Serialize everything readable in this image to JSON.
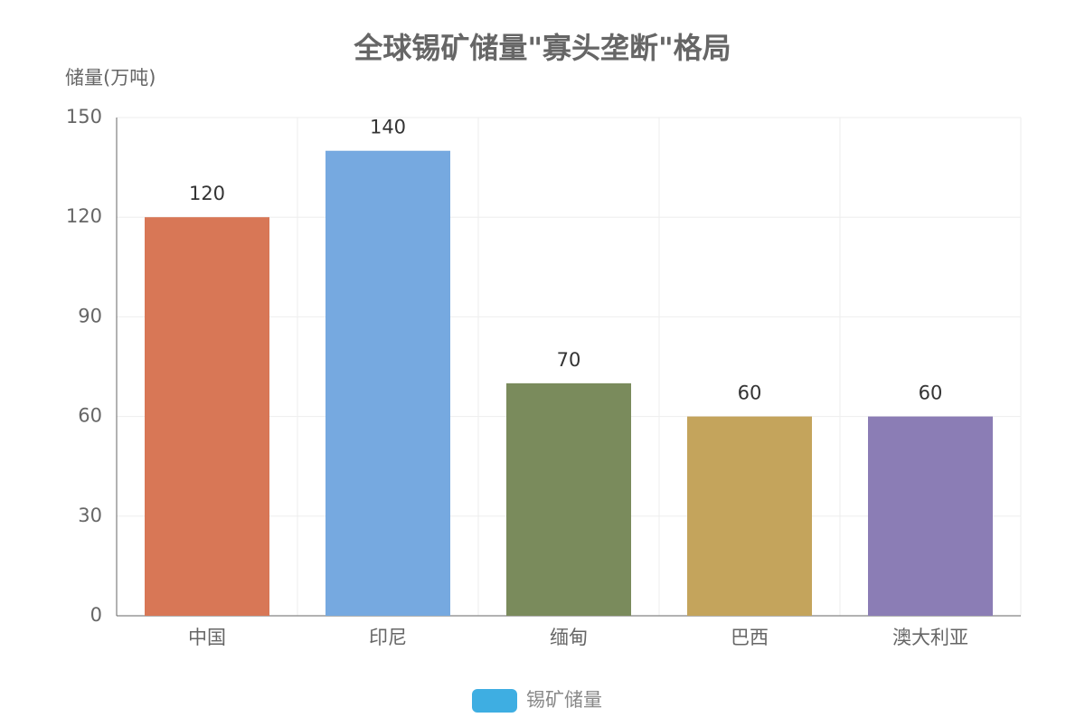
{
  "chart_data": {
    "type": "bar",
    "title": "全球锡矿储量\"寡头垄断\"格局",
    "y_axis_label": "储量(万吨)",
    "categories": [
      "中国",
      "印尼",
      "缅甸",
      "巴西",
      "澳大利亚"
    ],
    "series": [
      {
        "name": "锡矿储量",
        "color": "#3eaee2",
        "bar_colors": [
          "#d87756",
          "#76a9e0",
          "#7a8b5c",
          "#c4a45c",
          "#8b7db5"
        ],
        "values": [
          120,
          140,
          70,
          60,
          60
        ]
      }
    ],
    "ylim": [
      0,
      150
    ],
    "yticks": [
      0,
      30,
      60,
      90,
      120,
      150
    ],
    "grid": true,
    "legend": "bottom"
  }
}
